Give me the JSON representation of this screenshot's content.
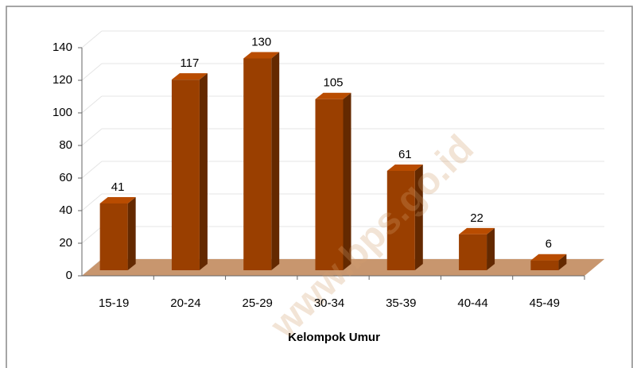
{
  "chart_data": {
    "type": "bar",
    "x_label": "Kelompok Umur",
    "watermark": "www.bps.go.id",
    "categories": [
      "15-19",
      "20-24",
      "25-29",
      "30-34",
      "35-39",
      "40-44",
      "45-49"
    ],
    "values": [
      41,
      117,
      130,
      105,
      61,
      22,
      6
    ],
    "color": "#9a3f00",
    "ylim": [
      0,
      140
    ],
    "yticks": [
      0,
      20,
      40,
      60,
      80,
      100,
      120,
      140
    ],
    "grid": true
  }
}
